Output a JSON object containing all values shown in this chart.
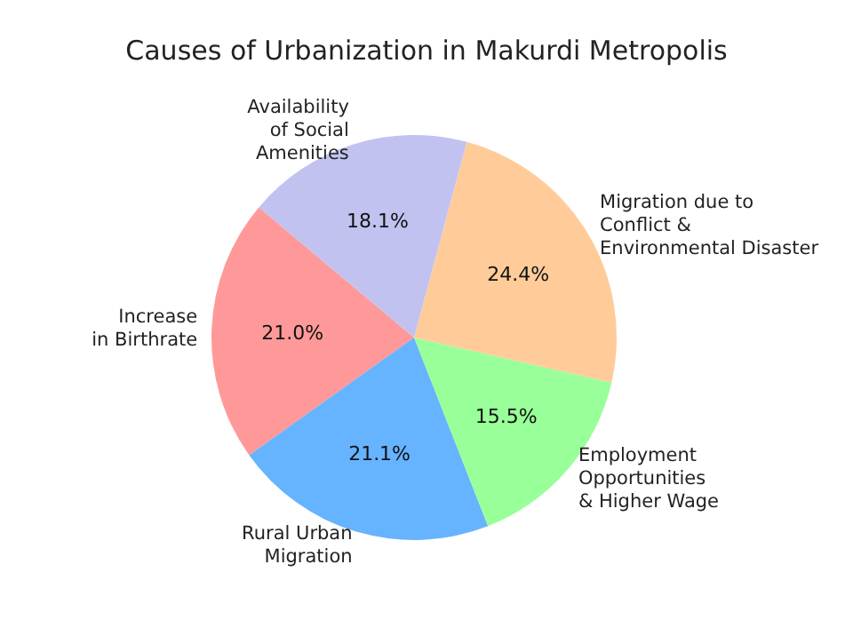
{
  "chart_data": {
    "type": "pie",
    "title": "Causes of Urbanization in Makurdi Metropolis",
    "categories": [
      "Increase\nin Birthrate",
      "Rural Urban\nMigration",
      "Employment\nOpportunities\n& Higher Wage",
      "Migration due to\nConflict &\nEnvironmental Disaster",
      "Availability\nof Social\nAmenities"
    ],
    "values": [
      21.0,
      21.1,
      15.5,
      24.4,
      18.1
    ],
    "value_labels": [
      "21.0%",
      "21.1%",
      "15.5%",
      "24.4%",
      "18.1%"
    ],
    "colors": [
      "#ff9999",
      "#66b3ff",
      "#99ff99",
      "#ffcc99",
      "#c2c2f0"
    ]
  }
}
